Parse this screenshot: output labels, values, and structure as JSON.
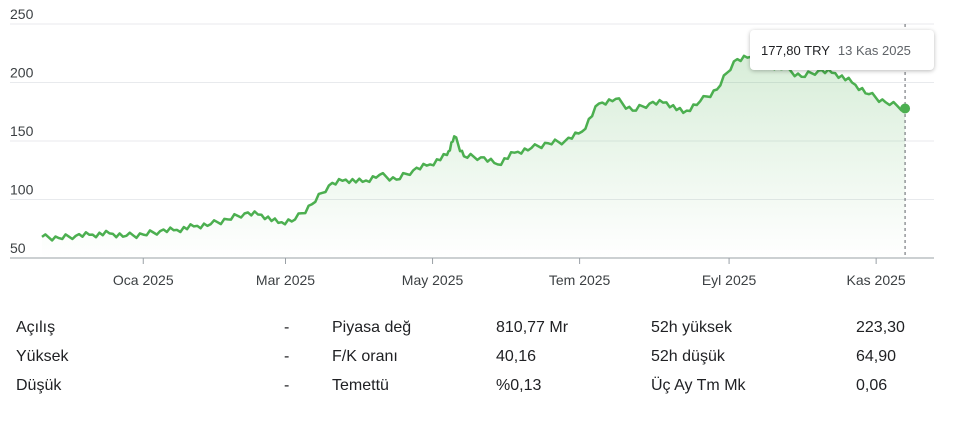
{
  "chart_data": {
    "type": "area",
    "y_ticks": [
      "250",
      "200",
      "150",
      "100",
      "50"
    ],
    "ylim": [
      50,
      250
    ],
    "x_ticks": [
      "Oca 2025",
      "Mar 2025",
      "May 2025",
      "Tem 2025",
      "Eyl 2025",
      "Kas 2025"
    ],
    "x_range": [
      "2024-11-20",
      "2025-11-25"
    ],
    "line_color": "#4caf50",
    "series": [
      {
        "x": [
          "2024-11-20",
          "2024-11-27",
          "2024-12-04",
          "2024-12-11",
          "2024-12-18",
          "2024-12-25",
          "2025-01-01",
          "2025-01-08",
          "2025-01-15",
          "2025-01-22",
          "2025-01-29",
          "2025-02-05",
          "2025-02-12",
          "2025-02-19",
          "2025-02-26",
          "2025-03-05",
          "2025-03-12",
          "2025-03-19",
          "2025-03-26",
          "2025-04-02",
          "2025-04-09",
          "2025-04-16",
          "2025-04-23",
          "2025-04-30",
          "2025-05-07",
          "2025-05-10",
          "2025-05-14",
          "2025-05-21",
          "2025-05-28",
          "2025-06-04",
          "2025-06-11",
          "2025-06-18",
          "2025-06-25",
          "2025-07-02",
          "2025-07-09",
          "2025-07-16",
          "2025-07-23",
          "2025-07-30",
          "2025-08-06",
          "2025-08-13",
          "2025-08-20",
          "2025-08-27",
          "2025-09-03",
          "2025-09-10",
          "2025-09-17",
          "2025-09-24",
          "2025-10-01",
          "2025-10-08",
          "2025-10-15",
          "2025-10-22",
          "2025-10-29",
          "2025-11-05",
          "2025-11-13"
        ],
        "y": [
          68,
          67,
          69,
          70,
          71,
          69,
          70,
          73,
          74,
          77,
          79,
          83,
          88,
          87,
          80,
          83,
          96,
          112,
          117,
          115,
          121,
          117,
          125,
          130,
          138,
          154,
          137,
          136,
          130,
          140,
          144,
          148,
          150,
          158,
          182,
          186,
          176,
          182,
          183,
          174,
          184,
          194,
          218,
          222,
          215,
          212,
          205,
          210,
          208,
          200,
          190,
          183,
          177.8
        ]
      }
    ]
  },
  "tooltip": {
    "price": "177,80 TRY",
    "date": "13 Kas 2025"
  },
  "stats": [
    {
      "l1": "Açılış",
      "v1": "-",
      "l2": "Piyasa değ",
      "v2": "810,77 Mr",
      "l3": "52h yüksek",
      "v3": "223,30"
    },
    {
      "l1": "Yüksek",
      "v1": "-",
      "l2": "F/K oranı",
      "v2": "40,16",
      "l3": "52h düşük",
      "v3": "64,90"
    },
    {
      "l1": "Düşük",
      "v1": "-",
      "l2": "Temettü",
      "v2": "%0,13",
      "l3": "Üç Ay Tm Mk",
      "v3": "0,06"
    }
  ]
}
